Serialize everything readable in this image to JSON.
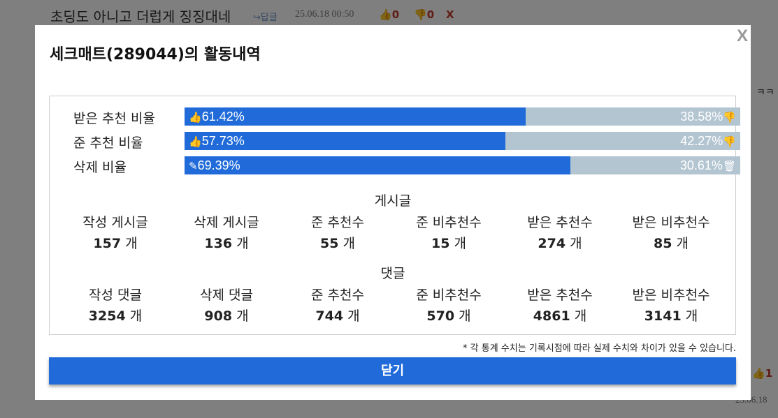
{
  "background": {
    "post_title": "초딩도 아니고 더럽게 징징대네",
    "reply": "답글",
    "date": "25.06.18 00:50",
    "up": 0,
    "down": 0,
    "delete": "X",
    "side_text": "ㅋㅋ",
    "side_up": 1,
    "side_date": "25.06.18"
  },
  "modal": {
    "title": "세크매트(289044)의 활동내역",
    "close": "X",
    "rates": [
      {
        "label": "받은 추천 비율",
        "left": "61.42%",
        "right": "38.58%"
      },
      {
        "label": "준 추천 비율",
        "left": "57.73%",
        "right": "42.27%"
      },
      {
        "label": "삭제 비율",
        "left": "69.39%",
        "right": "30.61%"
      }
    ],
    "sections": [
      {
        "title": "게시글",
        "stats": [
          {
            "label": "작성 게시글",
            "value": 157
          },
          {
            "label": "삭제 게시글",
            "value": 136
          },
          {
            "label": "준 추천수",
            "value": 55
          },
          {
            "label": "준 비추천수",
            "value": 15
          },
          {
            "label": "받은 추천수",
            "value": 274
          },
          {
            "label": "받은 비추천수",
            "value": 85
          }
        ]
      },
      {
        "title": "댓글",
        "stats": [
          {
            "label": "작성 댓글",
            "value": 3254
          },
          {
            "label": "삭제 댓글",
            "value": 908
          },
          {
            "label": "준 추천수",
            "value": 744
          },
          {
            "label": "준 비추천수",
            "value": 570
          },
          {
            "label": "받은 추천수",
            "value": 4861
          },
          {
            "label": "받은 비추천수",
            "value": 3141
          }
        ]
      }
    ],
    "unit": "개",
    "note": "* 각 통계 수치는 기록시점에 따라 실제 수치와 차이가 있을 수 있습니다.",
    "button": "닫기"
  }
}
